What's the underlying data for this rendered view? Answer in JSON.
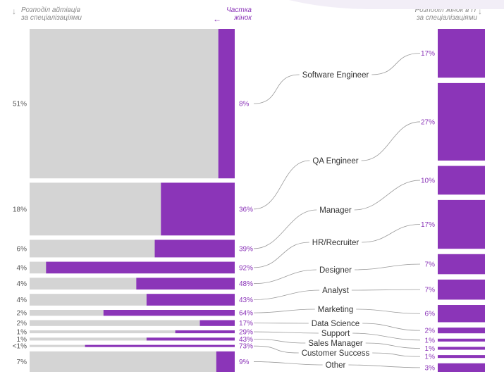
{
  "header": {
    "left_line1": "Розподіл айтівців",
    "left_line2": "за спеціалізаціями",
    "mid_line1": "Частка",
    "mid_line2": "жінок",
    "right_line1": "Розподіл жінок в IT",
    "right_line2": "за спеціалізаціями"
  },
  "colors": {
    "gray": "#d4d4d4",
    "purple": "#8b35b8",
    "label": "#333333",
    "muted": "#555555"
  },
  "chart_data": {
    "type": "bar",
    "categories": [
      "Software Engineer",
      "QA Engineer",
      "Manager",
      "HR/Recruiter",
      "Designer",
      "Analyst",
      "Marketing",
      "Data Science",
      "Support",
      "Sales Manager",
      "Customer Success",
      "Other"
    ],
    "series": [
      {
        "name": "Розподіл айтівців за спеціалізаціями",
        "values": [
          51,
          18,
          6,
          4,
          4,
          4,
          2,
          2,
          1,
          1,
          0.5,
          7
        ],
        "labels": [
          "51%",
          "18%",
          "6%",
          "4%",
          "4%",
          "4%",
          "2%",
          "2%",
          "1%",
          "1%",
          "<1%",
          "7%"
        ]
      },
      {
        "name": "Частка жінок",
        "values": [
          8,
          36,
          39,
          92,
          48,
          43,
          64,
          17,
          29,
          43,
          73,
          9
        ],
        "labels": [
          "8%",
          "36%",
          "39%",
          "92%",
          "48%",
          "43%",
          "64%",
          "17%",
          "29%",
          "43%",
          "73%",
          "9%"
        ]
      },
      {
        "name": "Розподіл жінок в IT за спеціалізаціями",
        "values": [
          17,
          27,
          10,
          17,
          7,
          7,
          6,
          2,
          1,
          1,
          1,
          3
        ],
        "labels": [
          "17%",
          "27%",
          "10%",
          "17%",
          "7%",
          "7%",
          "6%",
          "2%",
          "1%",
          "1%",
          "1%",
          "3%"
        ]
      }
    ]
  }
}
